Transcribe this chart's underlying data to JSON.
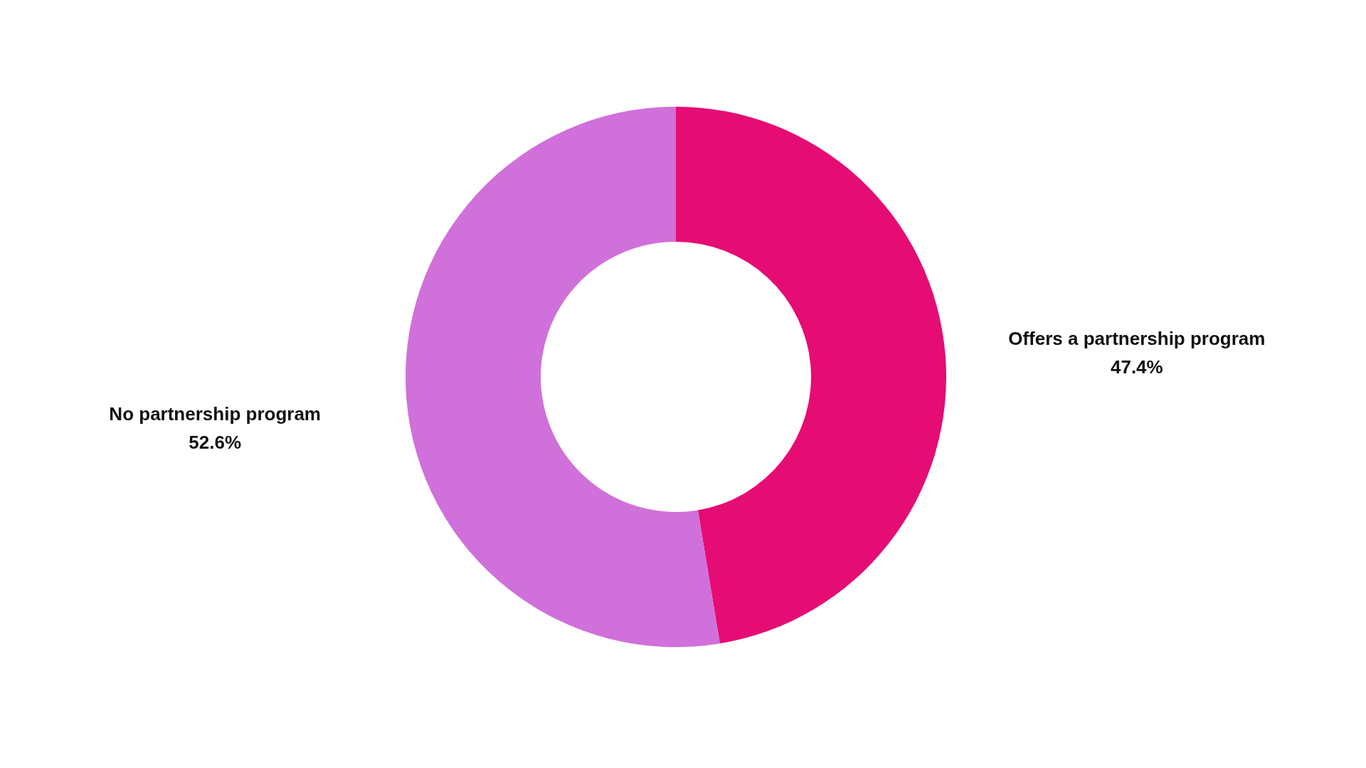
{
  "chart_data": {
    "type": "donut",
    "categories": [
      "Offers a partnership program",
      "No partnership program"
    ],
    "values": [
      47.4,
      52.6
    ],
    "value_labels": [
      "47.4%",
      "52.6%"
    ],
    "colors": [
      "#e50c74",
      "#d070da"
    ],
    "legend": false
  }
}
